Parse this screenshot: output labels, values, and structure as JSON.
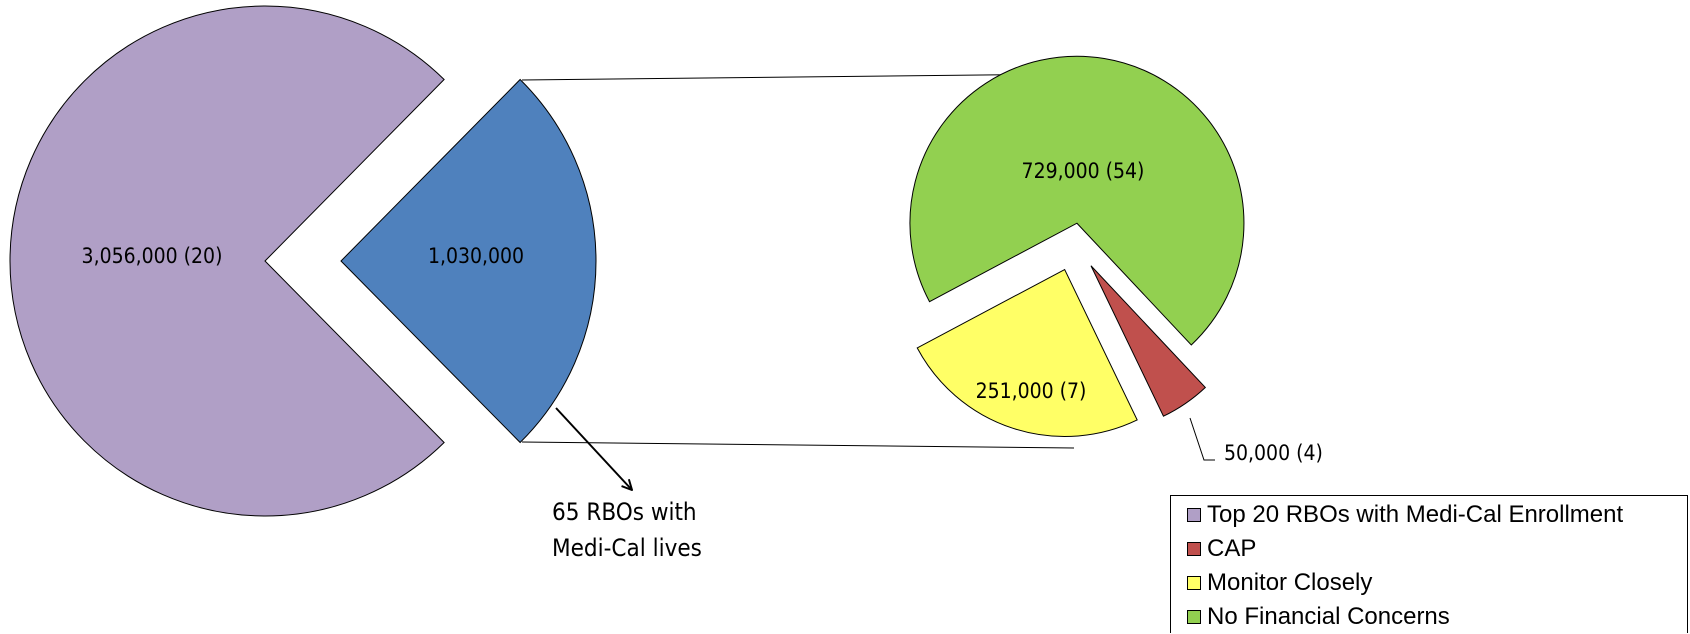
{
  "chart_data": {
    "type": "pie",
    "title": "",
    "primary": {
      "slices": [
        {
          "name": "Top 20 RBOs with Medi-Cal Enrollment",
          "value": 3056000,
          "label": "3,056,000 (20)",
          "color": "#b09fc6"
        },
        {
          "name": "65 RBOs with Medi-Cal lives",
          "value": 1030000,
          "label": "1,030,000",
          "color": "#4f81bd"
        }
      ]
    },
    "secondary": {
      "slices": [
        {
          "name": "No Financial Concerns",
          "value": 729000,
          "count": 54,
          "label": "729,000 (54)",
          "color": "#92d050"
        },
        {
          "name": "CAP",
          "value": 50000,
          "count": 4,
          "label": "50,000 (4)",
          "color": "#c0504d"
        },
        {
          "name": "Monitor Closely",
          "value": 251000,
          "count": 7,
          "label": "251,000 (7)",
          "color": "#ffff66"
        }
      ]
    },
    "annotation": {
      "line1": "65 RBOs with",
      "line2": "Medi-Cal lives"
    },
    "legend": {
      "position": "bottom-right",
      "items": [
        {
          "label": "Top 20 RBOs with Medi-Cal Enrollment",
          "color": "#b09fc6"
        },
        {
          "label": "CAP",
          "color": "#c0504d"
        },
        {
          "label": "Monitor Closely",
          "color": "#ffff66"
        },
        {
          "label": "No Financial Concerns",
          "color": "#92d050"
        }
      ]
    }
  }
}
